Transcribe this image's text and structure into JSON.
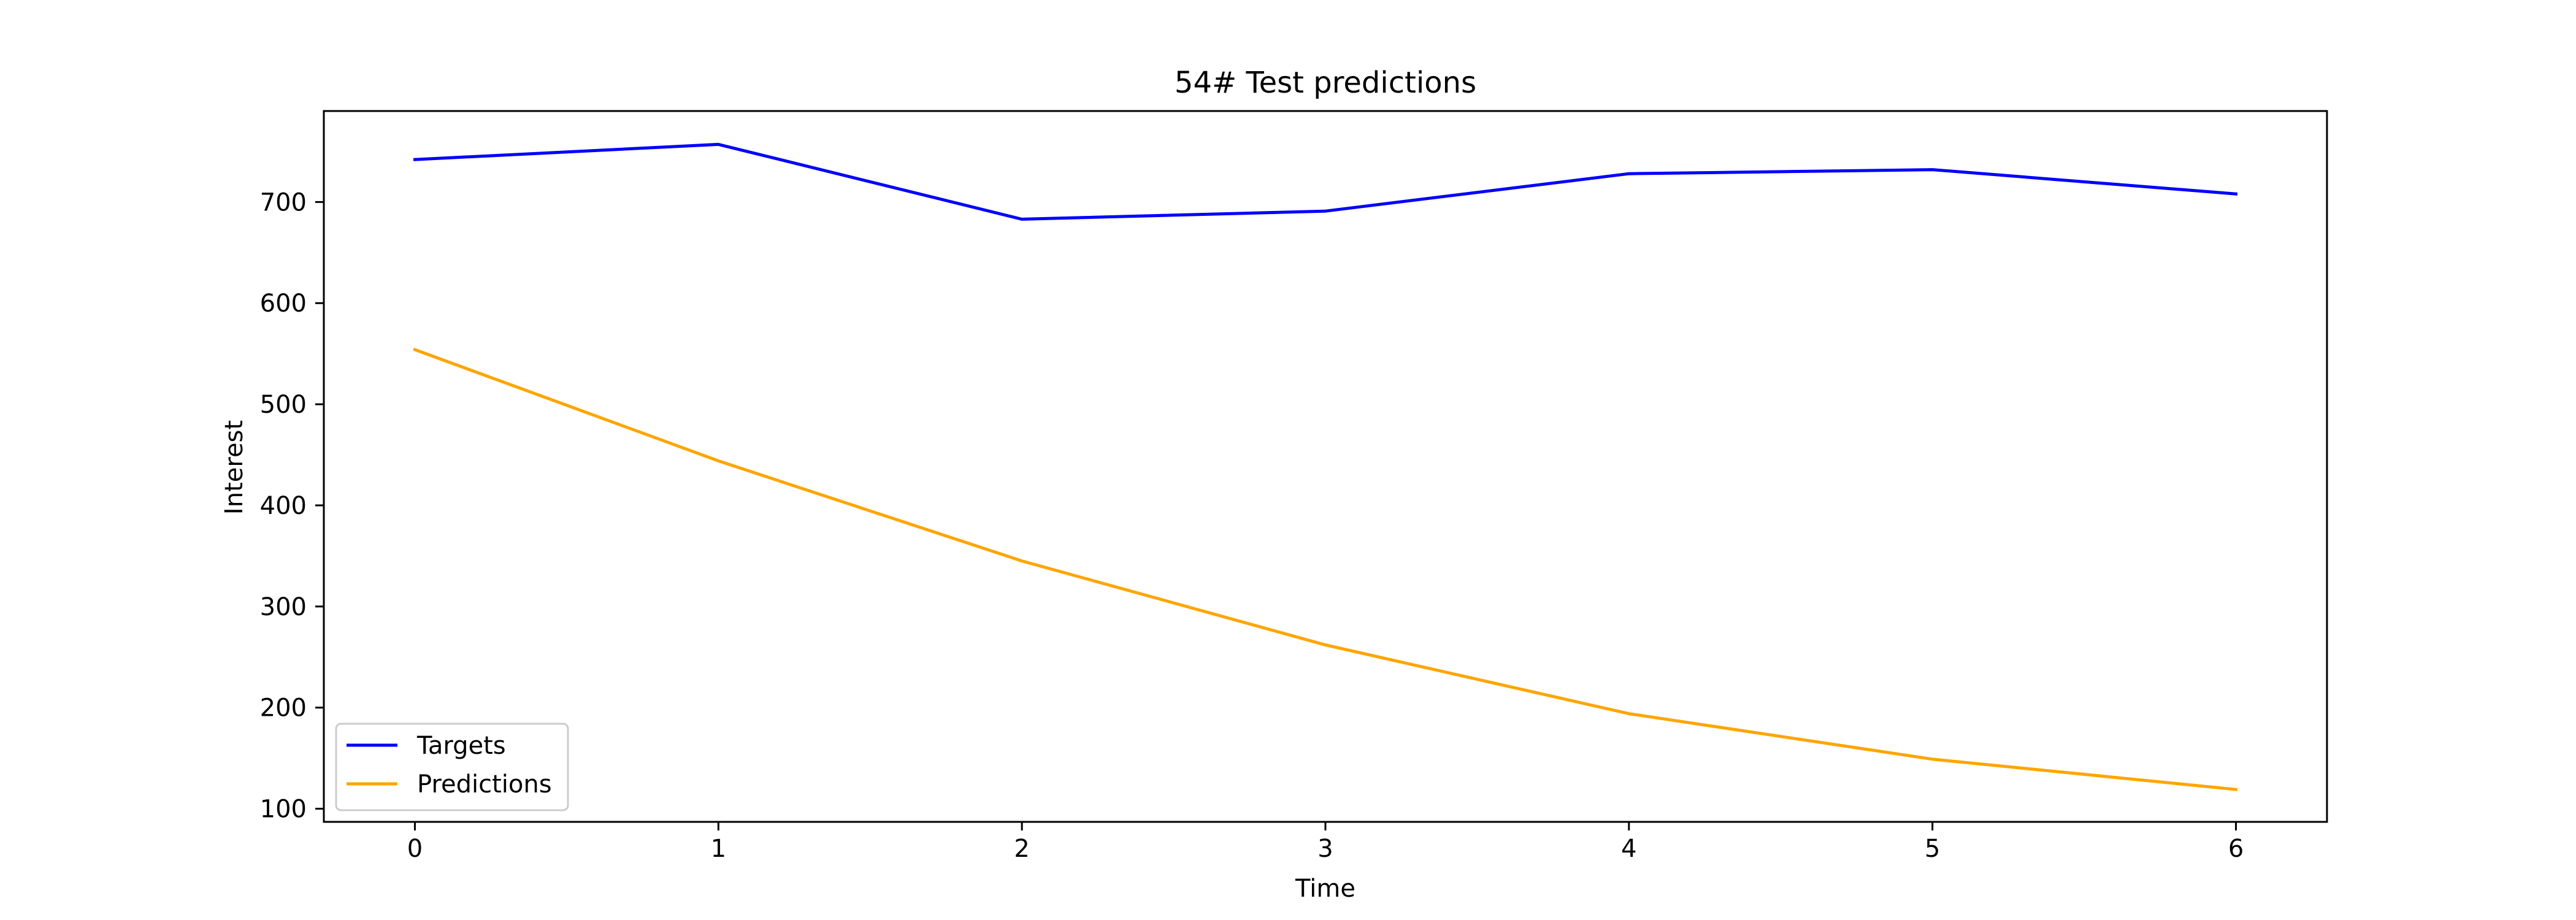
{
  "chart_data": {
    "type": "line",
    "title": "54# Test predictions",
    "xlabel": "Time",
    "ylabel": "Interest",
    "x": [
      0,
      1,
      2,
      3,
      4,
      5,
      6
    ],
    "xlim": [
      -0.3,
      6.3
    ],
    "ylim": [
      87,
      790
    ],
    "xticks": [
      0,
      1,
      2,
      3,
      4,
      5,
      6
    ],
    "yticks": [
      100,
      200,
      300,
      400,
      500,
      600,
      700
    ],
    "grid": false,
    "legend_position": "lower-left",
    "series": [
      {
        "name": "Targets",
        "color": "#0000ff",
        "values": [
          742,
          757,
          683,
          691,
          728,
          732,
          708
        ]
      },
      {
        "name": "Predictions",
        "color": "#ffa500",
        "values": [
          554,
          444,
          345,
          262,
          194,
          149,
          119
        ]
      }
    ]
  }
}
